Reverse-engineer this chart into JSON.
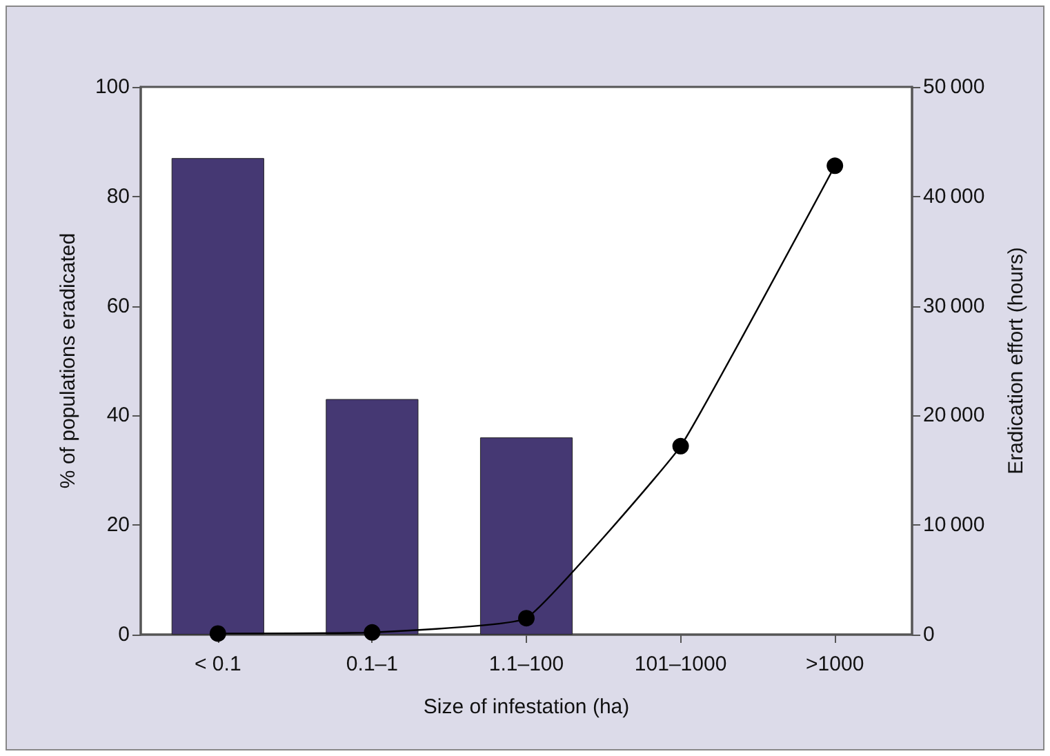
{
  "chart_data": {
    "type": "bar",
    "xlabel": "Size of infestation (ha)",
    "ylabel": "% of populations eradicated",
    "y2label": "Eradication effort (hours)",
    "categories": [
      "< 0.1",
      "0.1–1",
      "1.1–100",
      "101–1000",
      ">1000"
    ],
    "series": [
      {
        "color": "#453873",
        "values": [
          87,
          43,
          36,
          null,
          null
        ]
      },
      {
        "type": "line",
        "axis": "y2",
        "color": "#000000",
        "marker": "circle",
        "values": [
          100,
          200,
          1500,
          17200,
          42800
        ]
      }
    ],
    "ylim": [
      0,
      100
    ],
    "yticks": [
      0,
      20,
      40,
      60,
      80,
      100
    ],
    "y2lim": [
      0,
      50000
    ],
    "y2ticks": [
      0,
      10000,
      20000,
      30000,
      40000,
      50000
    ],
    "grid": false
  }
}
